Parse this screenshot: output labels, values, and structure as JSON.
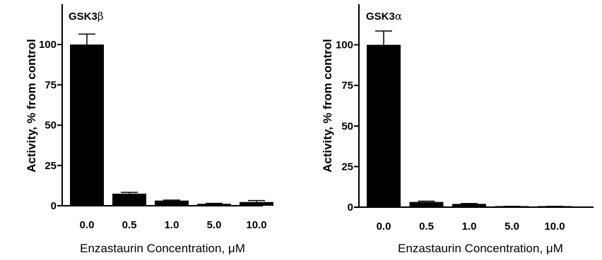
{
  "chart_data": [
    {
      "type": "bar",
      "title": "GSK3β",
      "title_prefix": "GSK3",
      "title_symbol": "β",
      "xlabel": "Enzastaurin Concentration, μM",
      "ylabel": "Activity, % from control",
      "categories": [
        "0.0",
        "0.5",
        "1.0",
        "5.0",
        "10.0"
      ],
      "values": [
        100,
        7.5,
        3.2,
        1.2,
        2.3
      ],
      "errors": [
        6.5,
        0.8,
        0.3,
        0.3,
        0.9
      ],
      "ylim": [
        0,
        125
      ],
      "yticks": [
        "0",
        "25",
        "50",
        "75",
        "100"
      ],
      "bar_color": "#000000",
      "grid": false
    },
    {
      "type": "bar",
      "title": "GSK3α",
      "title_prefix": "GSK3",
      "title_symbol": "α",
      "xlabel": "Enzastaurin Concentration, μM",
      "ylabel": "Activity, % from control",
      "categories": [
        "0.0",
        "0.5",
        "1.0",
        "5.0",
        "10.0"
      ],
      "values": [
        100,
        3.2,
        2.0,
        0.4,
        0.4
      ],
      "errors": [
        8.5,
        0.5,
        0.2,
        0.1,
        0.1
      ],
      "ylim": [
        0,
        125
      ],
      "yticks": [
        "0",
        "25",
        "50",
        "75",
        "100"
      ],
      "bar_color": "#000000",
      "grid": false
    }
  ]
}
